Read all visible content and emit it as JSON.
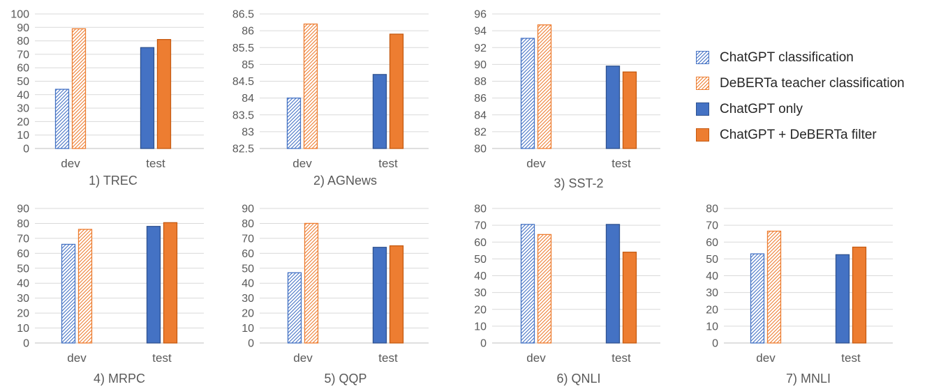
{
  "legend": {
    "items": [
      {
        "label": "ChatGPT classification",
        "color": "#4472C4",
        "pattern": "hatch"
      },
      {
        "label": "DeBERTa teacher classification",
        "color": "#ED7D31",
        "pattern": "hatch"
      },
      {
        "label": "ChatGPT only",
        "color": "#4472C4",
        "pattern": "solid"
      },
      {
        "label": "ChatGPT + DeBERTa filter",
        "color": "#ED7D31",
        "pattern": "solid"
      }
    ]
  },
  "chart_data": [
    {
      "type": "bar",
      "title": "1) TREC",
      "categories": [
        "dev",
        "test"
      ],
      "ylim": [
        0,
        100
      ],
      "yticks": [
        "0",
        "10",
        "20",
        "30",
        "40",
        "50",
        "60",
        "70",
        "80",
        "90",
        "100"
      ],
      "grid": true,
      "series": [
        {
          "name": "ChatGPT classification",
          "values": [
            44,
            null
          ]
        },
        {
          "name": "DeBERTa teacher classification",
          "values": [
            89,
            null
          ]
        },
        {
          "name": "ChatGPT only",
          "values": [
            null,
            75
          ]
        },
        {
          "name": "ChatGPT + DeBERTa filter",
          "values": [
            null,
            81
          ]
        }
      ]
    },
    {
      "type": "bar",
      "title": "2) AGNews",
      "categories": [
        "dev",
        "test"
      ],
      "ylim": [
        82.5,
        86.5
      ],
      "yticks": [
        "82.5",
        "83",
        "83.5",
        "84",
        "84.5",
        "85",
        "85.5",
        "86",
        "86.5"
      ],
      "grid": true,
      "series": [
        {
          "name": "ChatGPT classification",
          "values": [
            84.0,
            null
          ]
        },
        {
          "name": "DeBERTa teacher classification",
          "values": [
            86.2,
            null
          ]
        },
        {
          "name": "ChatGPT only",
          "values": [
            null,
            84.7
          ]
        },
        {
          "name": "ChatGPT + DeBERTa filter",
          "values": [
            null,
            85.9
          ]
        }
      ]
    },
    {
      "type": "bar",
      "title": "3) SST-2",
      "categories": [
        "dev",
        "test"
      ],
      "ylim": [
        80,
        96
      ],
      "yticks": [
        "80",
        "82",
        "84",
        "86",
        "88",
        "90",
        "92",
        "94",
        "96"
      ],
      "grid": true,
      "series": [
        {
          "name": "ChatGPT classification",
          "values": [
            93.1,
            null
          ]
        },
        {
          "name": "DeBERTa teacher classification",
          "values": [
            94.7,
            null
          ]
        },
        {
          "name": "ChatGPT only",
          "values": [
            null,
            89.8
          ]
        },
        {
          "name": "ChatGPT + DeBERTa filter",
          "values": [
            null,
            89.1
          ]
        }
      ]
    },
    {
      "type": "bar",
      "title": "4) MRPC",
      "categories": [
        "dev",
        "test"
      ],
      "ylim": [
        0,
        90
      ],
      "yticks": [
        "0",
        "10",
        "20",
        "30",
        "40",
        "50",
        "60",
        "70",
        "80",
        "90"
      ],
      "grid": true,
      "series": [
        {
          "name": "ChatGPT classification",
          "values": [
            66,
            null
          ]
        },
        {
          "name": "DeBERTa teacher classification",
          "values": [
            76,
            null
          ]
        },
        {
          "name": "ChatGPT only",
          "values": [
            null,
            78
          ]
        },
        {
          "name": "ChatGPT + DeBERTa filter",
          "values": [
            null,
            80.5
          ]
        }
      ]
    },
    {
      "type": "bar",
      "title": "5) QQP",
      "categories": [
        "dev",
        "test"
      ],
      "ylim": [
        0,
        90
      ],
      "yticks": [
        "0",
        "10",
        "20",
        "30",
        "40",
        "50",
        "60",
        "70",
        "80",
        "90"
      ],
      "grid": true,
      "series": [
        {
          "name": "ChatGPT classification",
          "values": [
            47,
            null
          ]
        },
        {
          "name": "DeBERTa teacher classification",
          "values": [
            80,
            null
          ]
        },
        {
          "name": "ChatGPT only",
          "values": [
            null,
            64
          ]
        },
        {
          "name": "ChatGPT + DeBERTa filter",
          "values": [
            null,
            65
          ]
        }
      ]
    },
    {
      "type": "bar",
      "title": "6) QNLI",
      "categories": [
        "dev",
        "test"
      ],
      "ylim": [
        0,
        80
      ],
      "yticks": [
        "0",
        "10",
        "20",
        "30",
        "40",
        "50",
        "60",
        "70",
        "80"
      ],
      "grid": true,
      "series": [
        {
          "name": "ChatGPT classification",
          "values": [
            70.5,
            null
          ]
        },
        {
          "name": "DeBERTa teacher classification",
          "values": [
            64.5,
            null
          ]
        },
        {
          "name": "ChatGPT only",
          "values": [
            null,
            70.5
          ]
        },
        {
          "name": "ChatGPT + DeBERTa filter",
          "values": [
            null,
            54
          ]
        }
      ]
    },
    {
      "type": "bar",
      "title": "7) MNLI",
      "categories": [
        "dev",
        "test"
      ],
      "ylim": [
        0,
        80
      ],
      "yticks": [
        "0",
        "10",
        "20",
        "30",
        "40",
        "50",
        "60",
        "70",
        "80"
      ],
      "grid": true,
      "series": [
        {
          "name": "ChatGPT classification",
          "values": [
            53,
            null
          ]
        },
        {
          "name": "DeBERTa teacher classification",
          "values": [
            66.5,
            null
          ]
        },
        {
          "name": "ChatGPT only",
          "values": [
            null,
            52.5
          ]
        },
        {
          "name": "ChatGPT + DeBERTa filter",
          "values": [
            null,
            57
          ]
        }
      ]
    }
  ]
}
